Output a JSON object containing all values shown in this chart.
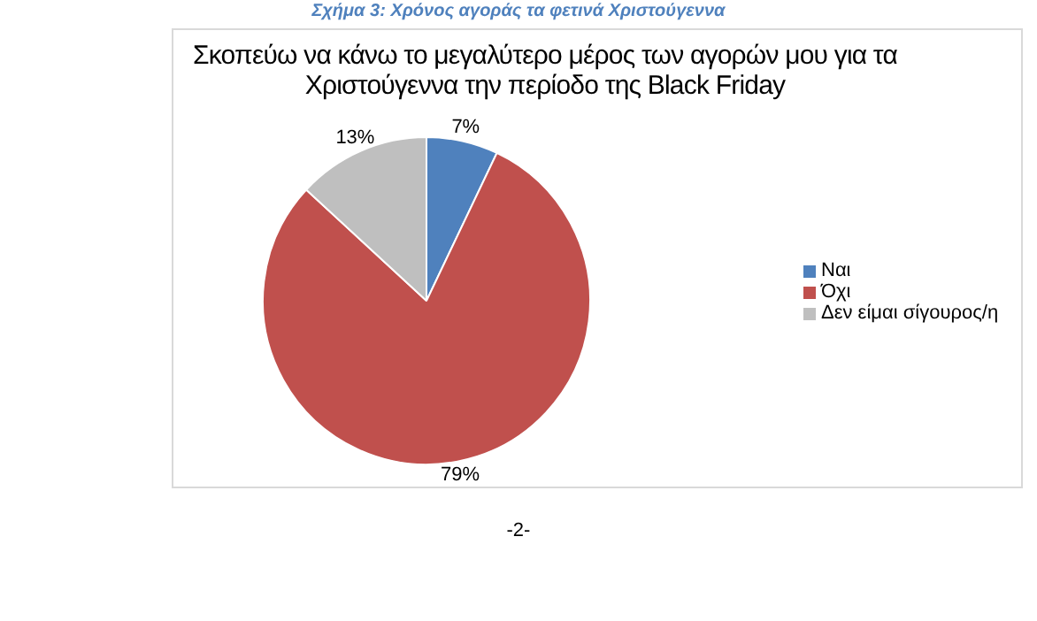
{
  "chart_data": {
    "type": "pie",
    "title": "Σκοπεύω να κάνω το μεγαλύτερο μέρος των αγορών μου για τα Χριστούγεννα την περίοδο της Black Friday",
    "categories": [
      "Ναι",
      "Όχι",
      "Δεν είμαι σίγουρος/η"
    ],
    "values": [
      7,
      79,
      13
    ],
    "colors": [
      "#4f81bd",
      "#c0504d",
      "#bfbfbf"
    ],
    "value_labels": [
      "7%",
      "79%",
      "13%"
    ],
    "legend": "right",
    "annotations": [
      "Σχήμα 3: Χρόνος αγοράς τα φετινά Χριστούγεννα",
      "-2-"
    ]
  }
}
